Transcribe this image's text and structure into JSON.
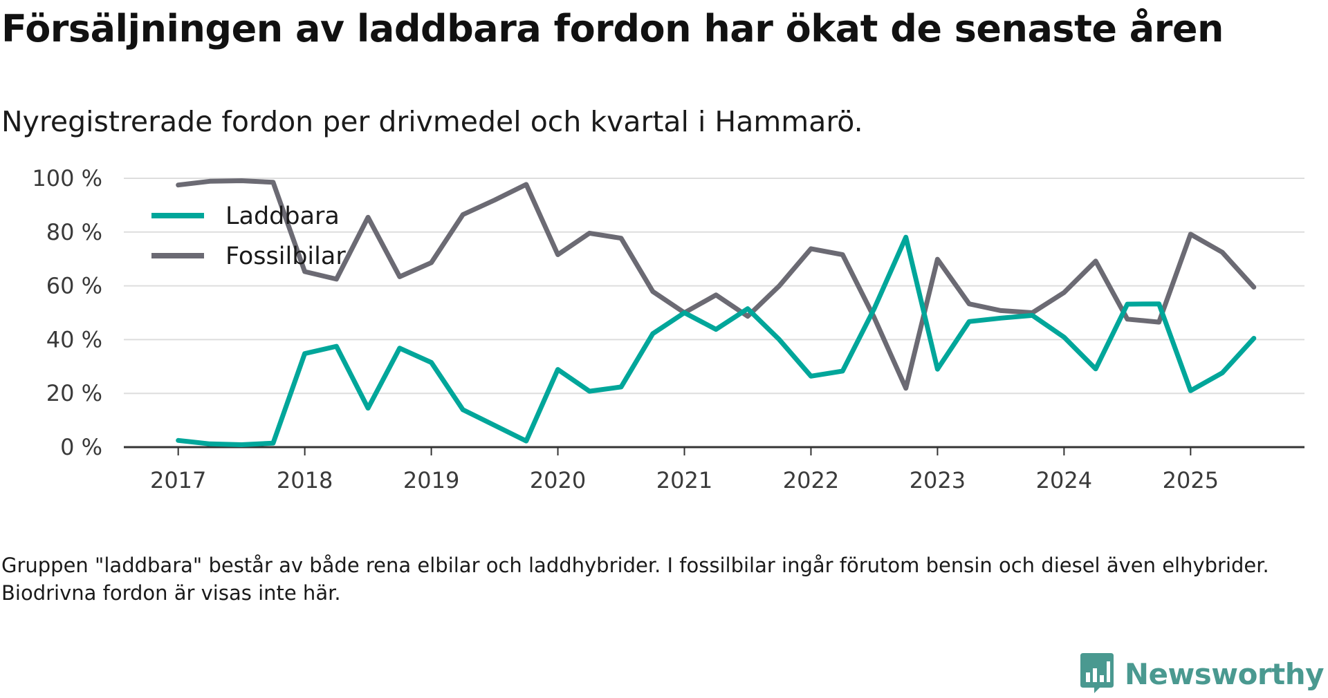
{
  "title": "Försäljningen av laddbara fordon har ökat de senaste åren",
  "subtitle": "Nyregistrerade fordon per drivmedel och kvartal i Hammarö.",
  "footnote": "Gruppen \"laddbara\" består av både rena elbilar och laddhybrider. I fossilbilar ingår förutom bensin och diesel även elhybrider. Biodrivna fordon är visas inte här.",
  "brand": {
    "name": "Newsworthy",
    "icon": "newsworthy-logo-icon",
    "color": "#4a9990"
  },
  "colors": {
    "laddbara": "#00a69a",
    "fossil": "#6b6a73",
    "grid": "#dddddd",
    "axis": "#333333"
  },
  "chart_data": {
    "type": "line",
    "title": "Försäljningen av laddbara fordon har ökat de senaste åren",
    "subtitle": "Nyregistrerade fordon per drivmedel och kvartal i Hammarö.",
    "xlabel": "",
    "ylabel": "",
    "ylim": [
      0,
      100
    ],
    "yticks": [
      0,
      20,
      40,
      60,
      80,
      100
    ],
    "ytick_labels": [
      "0 %",
      "20 %",
      "40 %",
      "60 %",
      "80 %",
      "100 %"
    ],
    "xlim": [
      2016.57,
      2025.9
    ],
    "xticks": [
      2017,
      2018,
      2019,
      2020,
      2021,
      2022,
      2023,
      2024,
      2025
    ],
    "xtick_labels": [
      "2017",
      "2018",
      "2019",
      "2020",
      "2021",
      "2022",
      "2023",
      "2024",
      "2025"
    ],
    "grid": true,
    "legend_position": "top-left",
    "x": [
      2017.0,
      2017.25,
      2017.5,
      2017.75,
      2018.0,
      2018.25,
      2018.5,
      2018.75,
      2019.0,
      2019.25,
      2019.5,
      2019.75,
      2020.0,
      2020.25,
      2020.5,
      2020.75,
      2021.0,
      2021.25,
      2021.5,
      2021.75,
      2022.0,
      2022.25,
      2022.5,
      2022.75,
      2023.0,
      2023.25,
      2023.5,
      2023.75,
      2024.0,
      2024.25,
      2024.5,
      2024.75,
      2025.0,
      2025.25,
      2025.5
    ],
    "series": [
      {
        "name": "Laddbara",
        "color": "#00a69a",
        "values": [
          2.5,
          1.2,
          0.9,
          1.5,
          34.8,
          37.5,
          14.5,
          36.8,
          31.5,
          13.9,
          8.1,
          2.3,
          28.9,
          20.8,
          22.4,
          42.2,
          50.0,
          43.8,
          51.5,
          40.0,
          26.4,
          28.3,
          51.5,
          78.1,
          29.0,
          46.7,
          48.0,
          49.0,
          40.9,
          29.1,
          53.2,
          53.3,
          21.0,
          27.6,
          40.5
        ]
      },
      {
        "name": "Fossilbilar",
        "color": "#6b6a73",
        "values": [
          97.5,
          98.9,
          99.1,
          98.5,
          65.3,
          62.5,
          85.5,
          63.4,
          68.6,
          86.5,
          91.9,
          97.7,
          71.6,
          79.6,
          77.7,
          57.9,
          50.0,
          56.6,
          48.7,
          60.0,
          73.8,
          71.6,
          48.2,
          21.9,
          69.9,
          53.3,
          50.8,
          50.0,
          57.5,
          69.2,
          47.6,
          46.5,
          79.2,
          72.5,
          59.5
        ]
      }
    ]
  }
}
